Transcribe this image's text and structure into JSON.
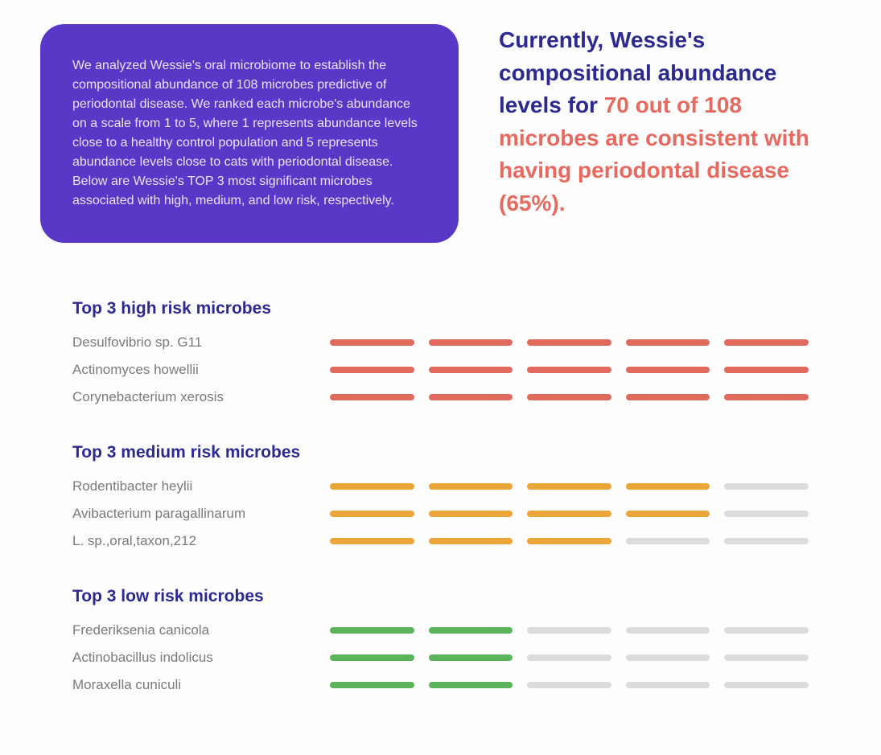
{
  "colors": {
    "purple_box_bg": "#5a38c7",
    "purple_box_text": "#e8e4f5",
    "heading_navy": "#2d2a8f",
    "highlight_coral": "#e56a5f",
    "label_gray": "#7a7a7a",
    "bar_inactive": "#dcdcdc",
    "bar_high": "#e16a5f",
    "bar_medium": "#eba63a",
    "bar_low": "#5bb35b",
    "background": "#fdfdfd"
  },
  "intro_box": {
    "text": "We analyzed Wessie's oral microbiome to establish the compositional abundance of 108 microbes predictive of periodontal disease. We ranked each microbe's abundance on a scale from 1 to 5, where 1 represents abundance levels close to a healthy control population and 5 represents abundance levels close to cats with periodontal disease. Below are Wessie's TOP 3 most significant microbes associated with high, medium, and low risk, respectively."
  },
  "headline": {
    "part1": "Currently, Wessie's compositional abundance levels for ",
    "highlight": "70 out of 108 microbes are consistent with having periodontal disease (65%)."
  },
  "scale_max": 5,
  "sections": [
    {
      "title": "Top 3 high risk microbes",
      "color_key": "bar_high",
      "items": [
        {
          "name": "Desulfovibrio sp. G11",
          "score": 5
        },
        {
          "name": "Actinomyces howellii",
          "score": 5
        },
        {
          "name": "Corynebacterium xerosis",
          "score": 5
        }
      ]
    },
    {
      "title": "Top 3 medium risk microbes",
      "color_key": "bar_medium",
      "items": [
        {
          "name": "Rodentibacter heylii",
          "score": 4
        },
        {
          "name": "Avibacterium paragallinarum",
          "score": 4
        },
        {
          "name": "L. sp.,oral,taxon,212",
          "score": 3
        }
      ]
    },
    {
      "title": "Top 3 low risk microbes",
      "color_key": "bar_low",
      "items": [
        {
          "name": "Frederiksenia canicola",
          "score": 2
        },
        {
          "name": "Actinobacillus indolicus",
          "score": 2
        },
        {
          "name": "Moraxella cuniculi",
          "score": 2
        }
      ]
    }
  ]
}
